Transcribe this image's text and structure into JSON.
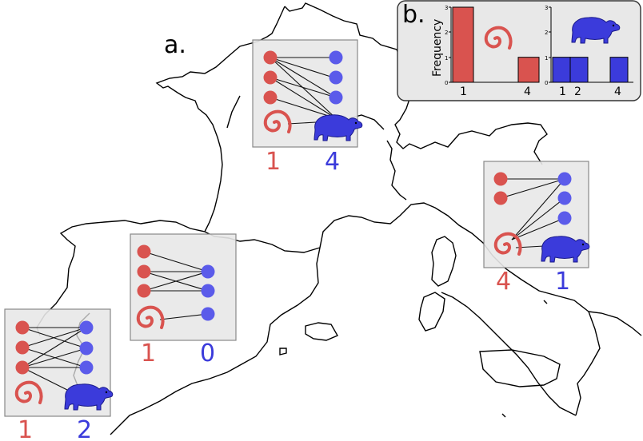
{
  "panel_a_label": "a.",
  "panel_b_label": "b.",
  "colors": {
    "red_node": "#d9534f",
    "blue_node": "#5b5bea",
    "box_fill": "#e8e8e8",
    "box_stroke": "#888888"
  },
  "icons": {
    "red_species": "spiral-worm-icon",
    "blue_species": "tapir-icon"
  },
  "regions": [
    {
      "id": "france",
      "red_count": "1",
      "blue_count": "4"
    },
    {
      "id": "italy",
      "red_count": "4",
      "blue_count": "1"
    },
    {
      "id": "spain",
      "red_count": "1",
      "blue_count": "0"
    },
    {
      "id": "portugal",
      "red_count": "1",
      "blue_count": "2"
    }
  ],
  "chart_data": [
    {
      "type": "bar",
      "categories": [
        "1",
        "4"
      ],
      "values": [
        3,
        1
      ],
      "series_color": "#d9534f",
      "ylabel": "Frequency",
      "ylim": [
        0,
        3
      ],
      "yticks": [
        "0",
        "1",
        "2",
        "3"
      ],
      "xticks": [
        "1",
        "4"
      ]
    },
    {
      "type": "bar",
      "categories": [
        "1",
        "2",
        "4"
      ],
      "values": [
        1,
        1,
        1
      ],
      "series_color": "#3b3bdb",
      "ylim": [
        0,
        3
      ],
      "yticks": [
        "0",
        "1",
        "2",
        "3"
      ],
      "xticks": [
        "1",
        "2",
        "4"
      ]
    }
  ]
}
